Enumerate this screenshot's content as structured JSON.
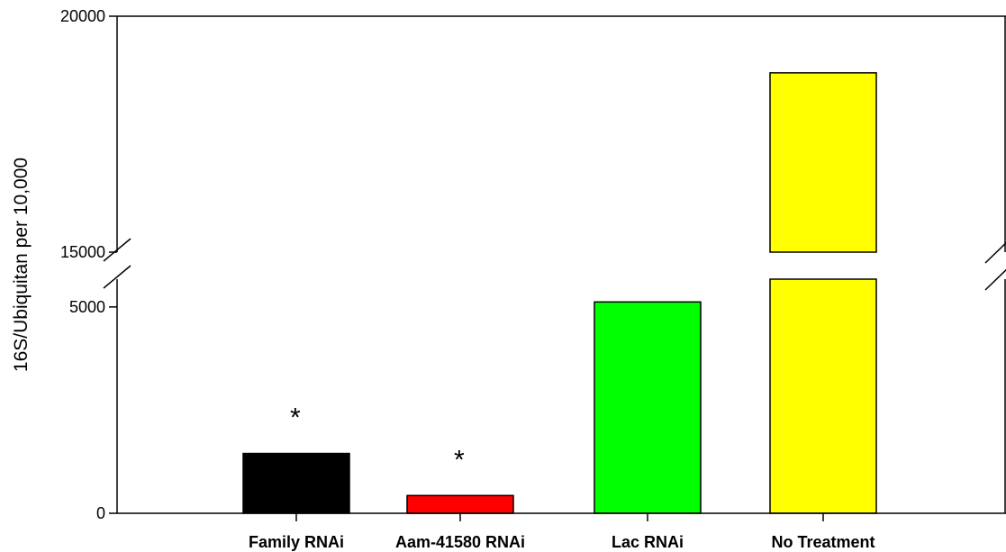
{
  "chart_data": {
    "type": "bar",
    "title": "",
    "xlabel": "",
    "ylabel": "16S/Ubiquitan per 10,000",
    "categories": [
      "Family RNAi",
      "Aam-41580 RNAi",
      "Lac RNAi",
      "No Treatment"
    ],
    "values": [
      1450,
      430,
      5120,
      18800
    ],
    "colors": [
      "#000000",
      "#ff0000",
      "#00ff00",
      "#ffff00"
    ],
    "annotations": [
      "*",
      "*",
      "",
      ""
    ],
    "ylim": [
      0,
      20000
    ],
    "axis_break": {
      "from": 6000,
      "to": 15000
    },
    "y_ticks": [
      {
        "value": 0,
        "label": "0"
      },
      {
        "value": 5000,
        "label": "5000"
      },
      {
        "value": 15000,
        "label": "15000"
      },
      {
        "value": 20000,
        "label": "20000"
      }
    ],
    "grid": false,
    "legend": "none"
  }
}
